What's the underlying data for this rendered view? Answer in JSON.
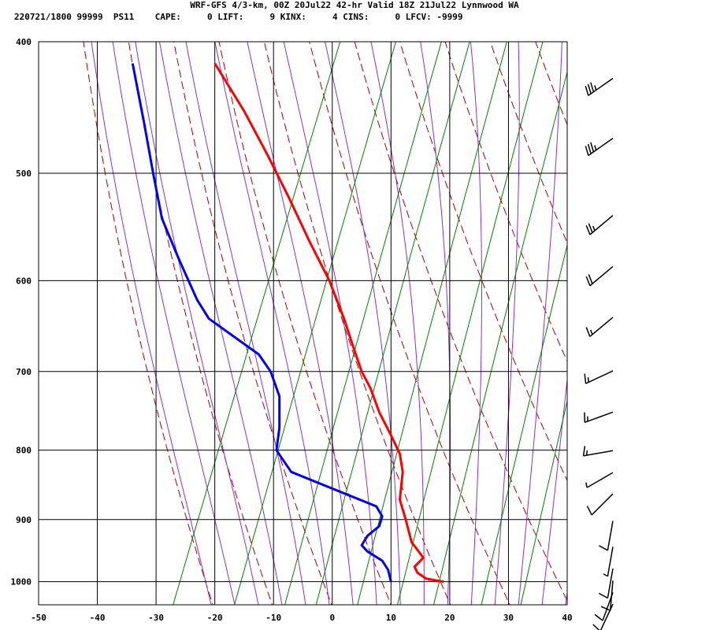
{
  "header": {
    "title_line": "WRF-GFS 4/3-km, 00Z 20Jul22 42-hr Valid 18Z 21Jul22 Lynnwood WA",
    "index_line": "220721/1800 99999  PS11    CAPE:     0 LIFT:     9 KINX:     4 CINS:     0 LFCV: -9999"
  },
  "colors": {
    "temperature": "#ff0000",
    "dewpoint": "#0000ff",
    "isotherm_grid": "#000000",
    "dry_adiabat": "#aa0000",
    "moist_adiabat": "#8833cc",
    "mixing_ratio": "#008000",
    "wind_barb": "#000000"
  },
  "chart_data": {
    "type": "line",
    "chart_kind": "skew-T log-P sounding",
    "x_ticks": [
      "-50",
      "-40",
      "-30",
      "-20",
      "-10",
      "0",
      "10",
      "20",
      "30",
      "40"
    ],
    "xlim": [
      -50,
      40
    ],
    "y_ticks": [
      "400",
      "500",
      "600",
      "700",
      "800",
      "900",
      "1000"
    ],
    "ylim": [
      1040,
      400
    ],
    "y_scale": "log",
    "grid": true,
    "series": [
      {
        "key": "temperature",
        "points": [
          [
            1000,
            19.0
          ],
          [
            995,
            16.0
          ],
          [
            985,
            14.5
          ],
          [
            975,
            14.0
          ],
          [
            960,
            15.5
          ],
          [
            935,
            13.5
          ],
          [
            900,
            12.5
          ],
          [
            870,
            11.5
          ],
          [
            830,
            12.0
          ],
          [
            805,
            11.5
          ],
          [
            780,
            10.0
          ],
          [
            750,
            8.0
          ],
          [
            720,
            6.5
          ],
          [
            700,
            5.0
          ],
          [
            670,
            3.5
          ],
          [
            640,
            2.0
          ],
          [
            600,
            -0.5
          ],
          [
            560,
            -4.0
          ],
          [
            520,
            -7.5
          ],
          [
            485,
            -11.0
          ],
          [
            450,
            -15.0
          ],
          [
            415,
            -20.0
          ]
        ]
      },
      {
        "key": "dewpoint",
        "points": [
          [
            1000,
            10.0
          ],
          [
            980,
            9.5
          ],
          [
            965,
            8.5
          ],
          [
            950,
            6.0
          ],
          [
            940,
            5.0
          ],
          [
            925,
            6.0
          ],
          [
            910,
            8.0
          ],
          [
            895,
            8.5
          ],
          [
            880,
            7.5
          ],
          [
            830,
            -7.0
          ],
          [
            800,
            -9.5
          ],
          [
            770,
            -9.0
          ],
          [
            730,
            -9.0
          ],
          [
            700,
            -10.5
          ],
          [
            680,
            -12.5
          ],
          [
            640,
            -21.0
          ],
          [
            620,
            -23.0
          ],
          [
            580,
            -26.0
          ],
          [
            540,
            -29.0
          ],
          [
            500,
            -30.5
          ],
          [
            460,
            -32.0
          ],
          [
            415,
            -34.0
          ]
        ]
      }
    ],
    "wind_barbs": [
      {
        "p": 420,
        "dir": 235,
        "kt": 35
      },
      {
        "p": 465,
        "dir": 235,
        "kt": 35
      },
      {
        "p": 530,
        "dir": 230,
        "kt": 25
      },
      {
        "p": 578,
        "dir": 230,
        "kt": 20
      },
      {
        "p": 630,
        "dir": 230,
        "kt": 15
      },
      {
        "p": 690,
        "dir": 245,
        "kt": 15
      },
      {
        "p": 740,
        "dir": 250,
        "kt": 15
      },
      {
        "p": 790,
        "dir": 260,
        "kt": 15
      },
      {
        "p": 820,
        "dir": 240,
        "kt": 5
      },
      {
        "p": 850,
        "dir": 225,
        "kt": 10
      },
      {
        "p": 890,
        "dir": 190,
        "kt": 10
      },
      {
        "p": 930,
        "dir": 190,
        "kt": 5
      },
      {
        "p": 965,
        "dir": 190,
        "kt": 10
      },
      {
        "p": 985,
        "dir": 185,
        "kt": 10
      },
      {
        "p": 1005,
        "dir": 200,
        "kt": 10
      },
      {
        "p": 1025,
        "dir": 205,
        "kt": 10
      }
    ]
  }
}
